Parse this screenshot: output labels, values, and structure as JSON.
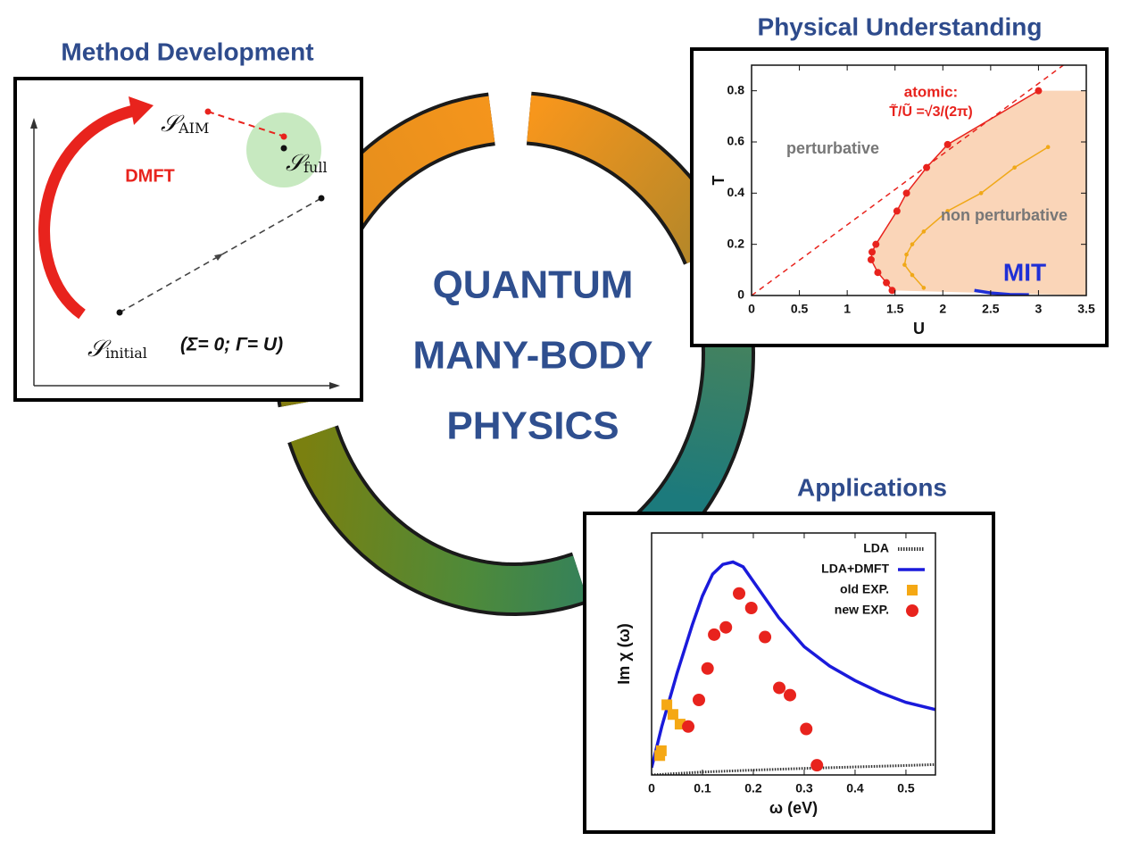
{
  "method_development": {
    "title": "Method Development",
    "dmft_label": "DMFT",
    "nodes": [
      {
        "symbol": "𝒮",
        "subscript": "AIM"
      },
      {
        "symbol": "𝒮",
        "subscript": "full"
      },
      {
        "symbol": "𝒮",
        "subscript": "initial"
      }
    ],
    "condition": "(Σ= 0;  Γ= U)"
  },
  "center": {
    "lines": [
      "QUANTUM",
      "MANY-BODY",
      "PHYSICS"
    ]
  },
  "physical_understanding": {
    "title": "Physical Understanding",
    "annotations": [
      "atomic:",
      "T̃/Ũ =√3/(2π)",
      "perturbative",
      "non perturbative",
      "MIT"
    ],
    "chart": {
      "type": "line",
      "xlabel": "U",
      "ylabel": "T",
      "xlim": [
        0,
        3.5
      ],
      "xticks": [
        0,
        0.5,
        1,
        1.5,
        2,
        2.5,
        3,
        3.5
      ],
      "ylim": [
        0,
        0.9
      ],
      "yticks": [
        0,
        0.2,
        0.4,
        0.6,
        0.8
      ],
      "series": [
        {
          "color": "#e8231d",
          "line": "solid",
          "marker": "dot",
          "fill": "#fad5b8",
          "x": [
            1.47,
            1.41,
            1.32,
            1.25,
            1.26,
            1.3,
            1.52,
            1.62,
            1.83,
            2.05,
            3.0
          ],
          "values": [
            0.02,
            0.05,
            0.09,
            0.14,
            0.17,
            0.2,
            0.33,
            0.4,
            0.5,
            0.59,
            0.8
          ]
        },
        {
          "color": "#f0a818",
          "line": "solid",
          "marker": "small-dot",
          "x": [
            1.8,
            1.68,
            1.6,
            1.62,
            1.68,
            1.8,
            2.05,
            2.4,
            2.75,
            3.1
          ],
          "values": [
            0.03,
            0.08,
            0.12,
            0.16,
            0.2,
            0.25,
            0.33,
            0.4,
            0.5,
            0.58
          ]
        },
        {
          "color": "#e8231d",
          "line": "dashed",
          "marker": "none",
          "x": [
            0,
            3.26
          ],
          "values": [
            0,
            0.9
          ]
        },
        {
          "color": "#1f2fd6",
          "line": "thick",
          "marker": "none",
          "x": [
            2.33,
            2.5,
            2.7,
            2.9
          ],
          "values": [
            0.02,
            0.01,
            0.004,
            0.003
          ]
        }
      ]
    }
  },
  "applications": {
    "title": "Applications",
    "chart": {
      "type": "line",
      "xlabel": "ω (eV)",
      "ylabel": "Im χ (ω)",
      "xlim": [
        0,
        0.558
      ],
      "xticks": [
        0,
        0.1,
        0.2,
        0.3,
        0.4,
        0.5
      ],
      "ylim": [
        0,
        1
      ],
      "legend": "top-right",
      "series": [
        {
          "name": "LDA",
          "color": "#333333",
          "line": "dotted",
          "marker": "none",
          "x": [
            0,
            0.1,
            0.2,
            0.3,
            0.4,
            0.5,
            0.558
          ],
          "values": [
            0,
            0.012,
            0.02,
            0.027,
            0.033,
            0.039,
            0.043
          ]
        },
        {
          "name": "LDA+DMFT",
          "color": "#1a1adb",
          "line": "thick",
          "marker": "none",
          "x": [
            0,
            0.02,
            0.05,
            0.08,
            0.1,
            0.12,
            0.14,
            0.16,
            0.18,
            0.2,
            0.25,
            0.3,
            0.35,
            0.4,
            0.45,
            0.5,
            0.558
          ],
          "values": [
            0.03,
            0.2,
            0.42,
            0.62,
            0.74,
            0.83,
            0.87,
            0.88,
            0.86,
            0.8,
            0.65,
            0.53,
            0.45,
            0.39,
            0.34,
            0.3,
            0.27
          ]
        },
        {
          "name": "old EXP.",
          "color": "#f5a814",
          "line": "none",
          "marker": "square",
          "x": [
            0.016,
            0.019,
            0.03,
            0.042,
            0.056
          ],
          "values": [
            0.08,
            0.1,
            0.29,
            0.25,
            0.21
          ]
        },
        {
          "name": "new EXP.",
          "color": "#e8231d",
          "line": "none",
          "marker": "circle",
          "x": [
            0.072,
            0.093,
            0.11,
            0.123,
            0.146,
            0.172,
            0.196,
            0.223,
            0.251,
            0.272,
            0.304,
            0.325
          ],
          "values": [
            0.2,
            0.31,
            0.44,
            0.58,
            0.61,
            0.75,
            0.69,
            0.57,
            0.36,
            0.33,
            0.19,
            0.04
          ]
        }
      ]
    }
  }
}
